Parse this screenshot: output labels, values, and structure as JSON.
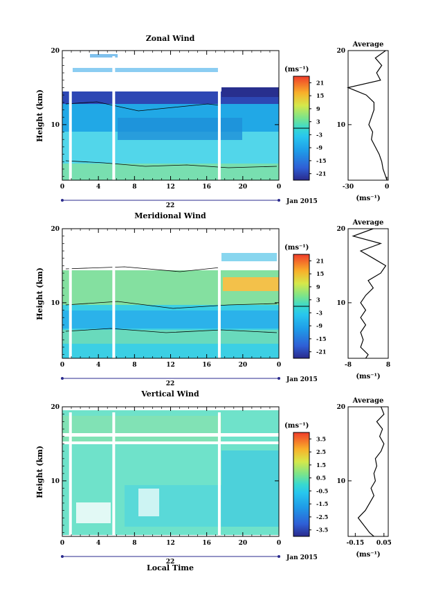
{
  "chart_data": [
    {
      "type": "heatmap",
      "title": "Zonal Wind",
      "ylabel": "Height (km)",
      "ylim": [
        2.5,
        20
      ],
      "yticks": [
        "10",
        "20"
      ],
      "xlim": [
        0,
        24
      ],
      "xticks": [
        "0",
        "4",
        "8",
        "12",
        "16",
        "20",
        "0"
      ],
      "date_day": "22",
      "date_month": "Jan 2015",
      "colorbar": {
        "unit": "(ms⁻¹)",
        "ticks": [
          "21",
          "15",
          "9",
          "3",
          "-3",
          "-9",
          "-15",
          "-21"
        ],
        "range": [
          -24,
          24
        ]
      },
      "data_gaps_hours": [
        0.9,
        5.7,
        17.4
      ],
      "profile": {
        "title": "Average",
        "xlabel": "(ms⁻¹)",
        "xlim": [
          -30,
          1
        ],
        "xticks": [
          "-30",
          "0"
        ],
        "yticks": [
          "10",
          "20"
        ],
        "heights": [
          2.5,
          3,
          4,
          5,
          6,
          7,
          8,
          9,
          10,
          11,
          12,
          13,
          14,
          15,
          16,
          17,
          18,
          19,
          20
        ],
        "values": [
          0,
          -1,
          -3,
          -4,
          -6,
          -9,
          -12,
          -11,
          -14,
          -12,
          -10,
          -10,
          -16,
          -30,
          -5,
          -8,
          -4,
          -9,
          -1
        ]
      }
    },
    {
      "type": "heatmap",
      "title": "Meridional Wind",
      "ylabel": "Height (km)",
      "ylim": [
        2.5,
        20
      ],
      "yticks": [
        "10",
        "20"
      ],
      "xlim": [
        0,
        24
      ],
      "xticks": [
        "0",
        "4",
        "8",
        "12",
        "16",
        "20",
        "0"
      ],
      "date_day": "22",
      "date_month": "Jan 2015",
      "colorbar": {
        "unit": "(ms⁻¹)",
        "ticks": [
          "21",
          "15",
          "9",
          "3",
          "-3",
          "-9",
          "-15",
          "-21"
        ],
        "range": [
          -24,
          24
        ]
      },
      "data_gaps_hours": [
        0.9,
        5.7,
        17.4
      ],
      "profile": {
        "title": "Average",
        "xlabel": "(ms⁻¹)",
        "xlim": [
          -8,
          8
        ],
        "xticks": [
          "-8",
          "8"
        ],
        "yticks": [
          "10",
          "20"
        ],
        "heights": [
          2.5,
          3,
          4,
          5,
          6,
          7,
          8,
          9,
          10,
          11,
          12,
          13,
          14,
          15,
          16,
          17,
          18,
          19,
          20
        ],
        "values": [
          -1,
          0,
          -3,
          -2,
          -3,
          -1,
          -3,
          -1,
          -3,
          -1,
          2,
          0,
          5,
          7,
          2,
          -3,
          5,
          -6,
          2
        ]
      }
    },
    {
      "type": "heatmap",
      "title": "Vertical Wind",
      "ylabel": "Height (km)",
      "xlabel": "Local Time",
      "ylim": [
        2.5,
        20
      ],
      "yticks": [
        "10",
        "20"
      ],
      "xlim": [
        0,
        24
      ],
      "xticks": [
        "0",
        "4",
        "8",
        "12",
        "16",
        "20",
        "0"
      ],
      "date_day": "22",
      "date_month": "Jan 2015",
      "colorbar": {
        "unit": "(ms⁻¹)",
        "ticks": [
          "3.5",
          "2.5",
          "1.5",
          "0.5",
          "-0.5",
          "-1.5",
          "-2.5",
          "-3.5"
        ],
        "range": [
          -4,
          4
        ]
      },
      "data_gaps_hours": [
        0.9,
        5.7,
        17.4
      ],
      "profile": {
        "title": "Average",
        "xlabel": "(ms⁻¹)",
        "xlim": [
          -0.2,
          0.08
        ],
        "xticks": [
          "-0.15",
          "0.05"
        ],
        "yticks": [
          "10",
          "20"
        ],
        "heights": [
          2.5,
          3,
          4,
          5,
          6,
          7,
          8,
          9,
          10,
          11,
          12,
          13,
          14,
          15,
          16,
          17,
          18,
          19,
          20
        ],
        "values": [
          -0.02,
          -0.05,
          -0.09,
          -0.13,
          -0.08,
          -0.05,
          -0.02,
          -0.04,
          -0.01,
          -0.02,
          0.0,
          -0.01,
          0.03,
          0.05,
          0.02,
          0.04,
          0.0,
          0.05,
          0.03
        ]
      }
    }
  ]
}
